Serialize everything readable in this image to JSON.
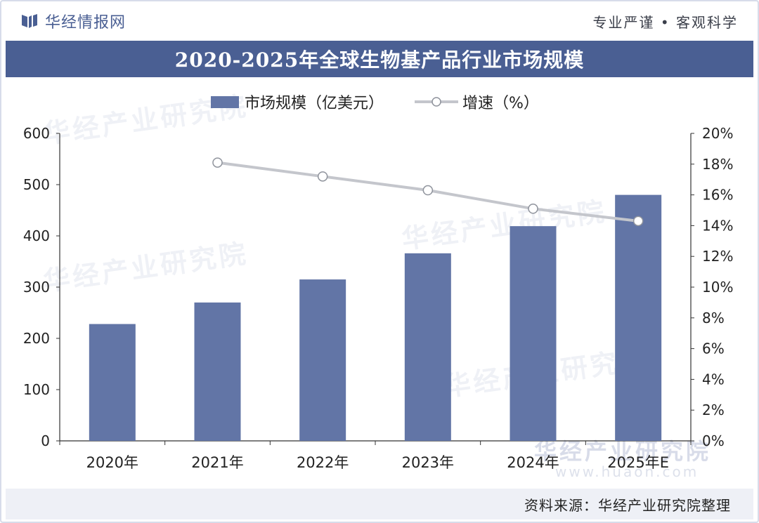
{
  "header": {
    "brand": "华经情报网",
    "slogan": "专业严谨 • 客观科学"
  },
  "chart_data": {
    "type": "bar",
    "title": "2020-2025年全球生物基产品行业市场规模",
    "categories": [
      "2020年",
      "2021年",
      "2022年",
      "2023年",
      "2024年",
      "2025年E"
    ],
    "series": [
      {
        "name": "市场规模（亿美元）",
        "type": "bar",
        "axis": "left",
        "values": [
          228,
          270,
          315,
          366,
          419,
          480
        ]
      },
      {
        "name": "增速（%）",
        "type": "line",
        "axis": "right",
        "values": [
          null,
          18.1,
          17.2,
          16.3,
          15.1,
          14.3
        ]
      }
    ],
    "ylim_left": [
      0,
      600
    ],
    "yticks_left": [
      "0",
      "100",
      "200",
      "300",
      "400",
      "500",
      "600"
    ],
    "ylim_right": [
      0,
      20
    ],
    "yticks_right": [
      "0%",
      "2%",
      "4%",
      "6%",
      "8%",
      "10%",
      "12%",
      "14%",
      "16%",
      "18%",
      "20%"
    ],
    "legend_position": "top",
    "grid": false,
    "colors": {
      "bar": "#6275a6",
      "line": "#c4c6cc",
      "marker_fill": "#ffffff",
      "marker_stroke": "#8f939c"
    }
  },
  "watermark": {
    "text": "华经产业研究院",
    "url": "www.huaon.com"
  },
  "footer": {
    "source": "资料来源：华经产业研究院整理"
  }
}
